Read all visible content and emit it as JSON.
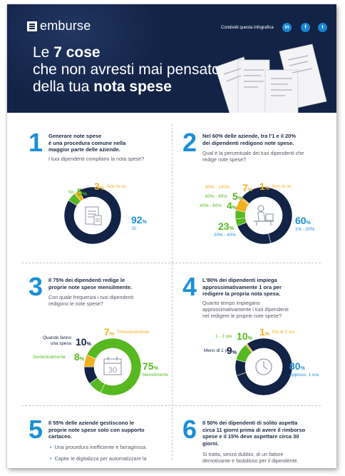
{
  "header": {
    "brand": "emburse",
    "share_label": "Condividi questa infografica",
    "social": [
      "in",
      "f",
      "t"
    ],
    "title_line1_pre": "Le ",
    "title_line1_bold": "7 cose",
    "title_line2": "che non avresti mai pensato",
    "title_line3_pre": "della tua ",
    "title_line3_bold": "nota spese"
  },
  "colors": {
    "navy": "#132346",
    "blue": "#1a8fd6",
    "green": "#57b81f",
    "yellow": "#f2b01e"
  },
  "sections": [
    {
      "number": "1",
      "lead": [
        "Generare note spese",
        "è una procedura comune nella",
        "maggior parte delle aziende."
      ],
      "question": [
        "I tuoi dipendenti compilano la nota spese?"
      ],
      "icon": "document-calculator-icon",
      "labels": [
        {
          "pct": "3",
          "text": "Non lo so"
        },
        {
          "pct": "5",
          "text": "No"
        },
        {
          "pct": "92",
          "text": "Sì"
        }
      ]
    },
    {
      "number": "2",
      "lead": [
        "Nel 60% delle aziende, tra l'1 e il 20%",
        "dei dipendenti redigono note spese."
      ],
      "question": [
        "Qual è la percentuale dei tuoi dipendenti che",
        "redige note spese?"
      ],
      "icon": "person-desk-icon",
      "labels": [
        {
          "pct": "7",
          "text": "80% - 100%"
        },
        {
          "pct": "1",
          "text": "Non lo so"
        },
        {
          "pct": "5",
          "text": "60% - 80%"
        },
        {
          "pct": "4",
          "text": "40% - 60%"
        },
        {
          "pct": "23",
          "text": "20% - 40%"
        },
        {
          "pct": "60",
          "text": "1% - 20%"
        }
      ]
    },
    {
      "number": "3",
      "lead": [
        "Il 75% dei dipendenti redige le",
        "proprie note spese mensilmente."
      ],
      "question": [
        "Con quale frequenza i tuoi dipendenti",
        "redigono le note spese?"
      ],
      "icon": "calendar-icon",
      "icon_text": "30",
      "labels": [
        {
          "pct": "7",
          "text": "Trimestralmente"
        },
        {
          "pct": "10",
          "text": "Quando fanno una spesa"
        },
        {
          "pct": "8",
          "text": "Semestralmente"
        },
        {
          "pct": "75",
          "text": "Mensilmente"
        }
      ]
    },
    {
      "number": "4",
      "lead": [
        "L'80% dei dipendenti impiega",
        "approssimativamente 1 ora per",
        "redigere la propria nota spesa."
      ],
      "question": [
        "Quanto tempo impiegano",
        "approssimativamente i tuoi dipendenti",
        "nel redigere le proprie note spese?"
      ],
      "icon": "clock-icon",
      "labels": [
        {
          "pct": "10",
          "text": "1 - 2 ore"
        },
        {
          "pct": "1",
          "text": "Più di 2 ore"
        },
        {
          "pct": "9",
          "text": "Meno di 1 ora"
        },
        {
          "pct": "80",
          "text": "Appross. 1 ora"
        }
      ]
    },
    {
      "number": "5",
      "lead": [
        "Il 55% delle aziende gestiscono le",
        "proprie note spese solo con supporto",
        "cartaceo."
      ],
      "bullets": [
        "Una procedura inefficiente e farraginosa.",
        "Captie le digitalizza per automatizzare la"
      ]
    },
    {
      "number": "6",
      "lead": [
        "Il 50% dei dipendenti di solito aspetta",
        "circa 11 giorni prima di avere il rimborso",
        "spese e il 15% deve aspettare circa 30",
        "giorni."
      ],
      "question": [
        "Si tratta, senza dubbio, di un fattore",
        "demotivante e fastidioso per il dipendente."
      ]
    }
  ],
  "chart_data": [
    {
      "type": "pie",
      "categories": [
        "Sì",
        "No",
        "Non lo so"
      ],
      "values": [
        92,
        5,
        3
      ]
    },
    {
      "type": "pie",
      "categories": [
        "1% - 20%",
        "20% - 40%",
        "40% - 60%",
        "60% - 80%",
        "80% - 100%",
        "Non lo so"
      ],
      "values": [
        60,
        23,
        4,
        5,
        7,
        1
      ]
    },
    {
      "type": "pie",
      "categories": [
        "Mensilmente",
        "Semestralmente",
        "Quando fanno una spesa",
        "Trimestralmente"
      ],
      "values": [
        75,
        8,
        10,
        7
      ]
    },
    {
      "type": "pie",
      "categories": [
        "Appross. 1 ora",
        "Meno di 1 ora",
        "1 - 2 ore",
        "Più di 2 ore"
      ],
      "values": [
        80,
        9,
        10,
        1
      ]
    }
  ]
}
